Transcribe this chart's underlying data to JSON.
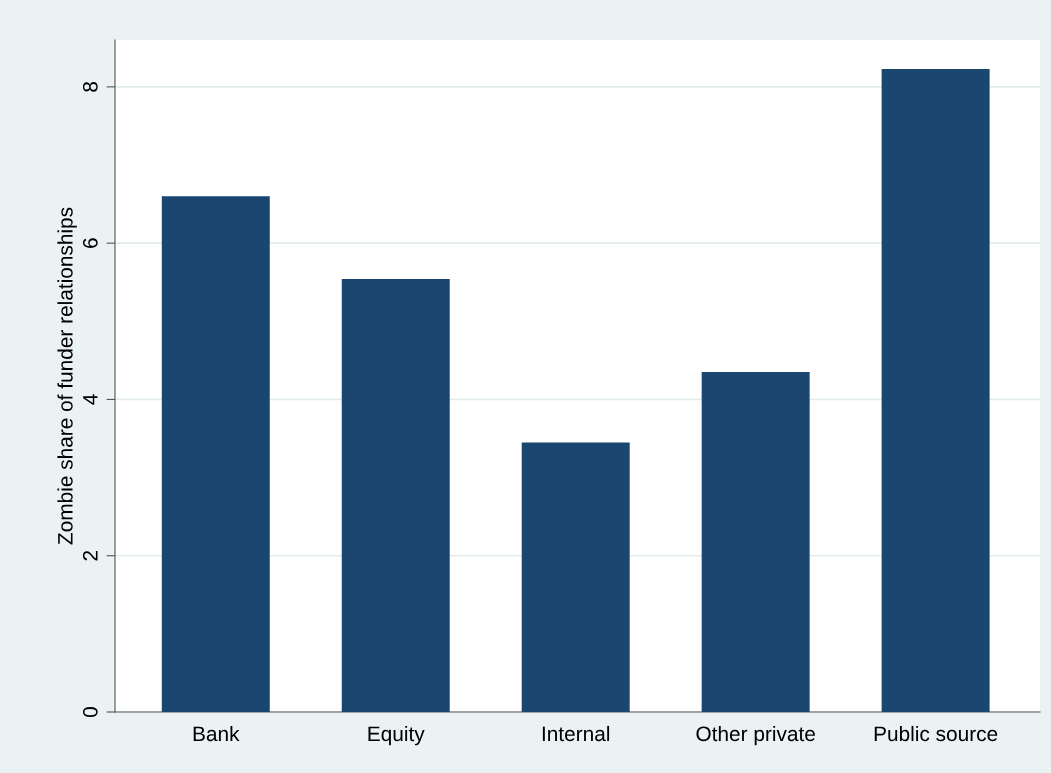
{
  "chart_data": {
    "type": "bar",
    "ylabel": "Zombie share of funder relationships",
    "categories": [
      "Bank",
      "Equity",
      "Internal",
      "Other private",
      "Public source"
    ],
    "values": [
      6.6,
      5.54,
      3.45,
      4.35,
      8.23
    ],
    "color": "#1a4670",
    "ylim": [
      0,
      8.6
    ],
    "yticks": [
      0,
      2,
      4,
      6,
      8
    ],
    "grid": "y"
  }
}
